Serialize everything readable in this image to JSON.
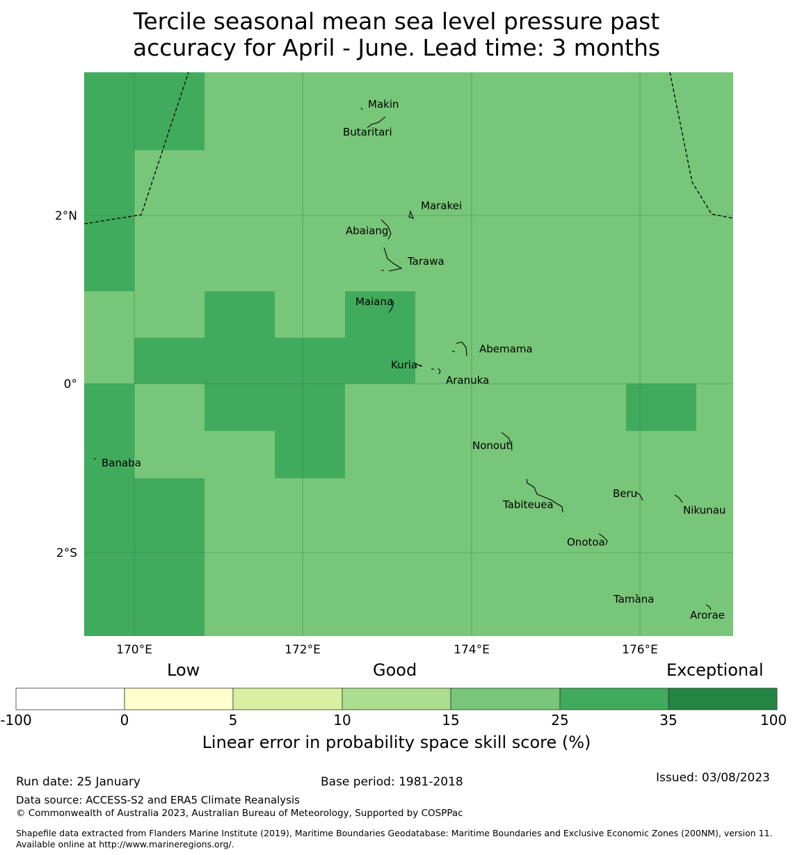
{
  "title_line1": "Tercile seasonal mean sea level pressure past",
  "title_line2": "accuracy for April - June. Lead time: 3 months",
  "colors": {
    "good_light": "#78c679",
    "good_dark": "#41ab5d",
    "exceptional": "#238443"
  },
  "map": {
    "lat_labels": [
      "2°N",
      "0°",
      "2°S"
    ],
    "lon_labels": [
      "170°E",
      "172°E",
      "174°E",
      "176°E"
    ],
    "islands": [
      "Makin",
      "Butaritari",
      "Marakei",
      "Abaiang",
      "Tarawa",
      "Maiana",
      "Abemama",
      "Kuria",
      "Aranuka",
      "Nonouti",
      "Banaba",
      "Tabiteuea",
      "Beru",
      "Nikunau",
      "Onotoa",
      "Tamana",
      "Arorae"
    ]
  },
  "colorbar": {
    "category_labels": [
      "Low",
      "Good",
      "Exceptional"
    ],
    "ticks": [
      "-100",
      "0",
      "5",
      "10",
      "15",
      "25",
      "35",
      "100"
    ],
    "colors": [
      "#ffffff",
      "#ffffcc",
      "#d9f0a3",
      "#addd8e",
      "#78c679",
      "#41ab5d",
      "#238443"
    ],
    "title": "Linear error in probability space skill score (%)"
  },
  "footer": {
    "run_date": "Run date: 25 January",
    "base_period": "Base period: 1981-2018",
    "issued": "Issued: 03/08/2023",
    "data_source": "Data source: ACCESS-S2 and ERA5 Climate Reanalysis",
    "copyright": "© Commonwealth of Australia 2023, Australian Bureau of Meteorology, Supported by COSPPac",
    "shapefile": "Shapefile data extracted from Flanders Marine Institute (2019), Maritime Boundaries Geodatabase: Maritime Boundaries and Exclusive Economic Zones (200NM), version 11. Available online at http://www.marineregions.org/."
  }
}
